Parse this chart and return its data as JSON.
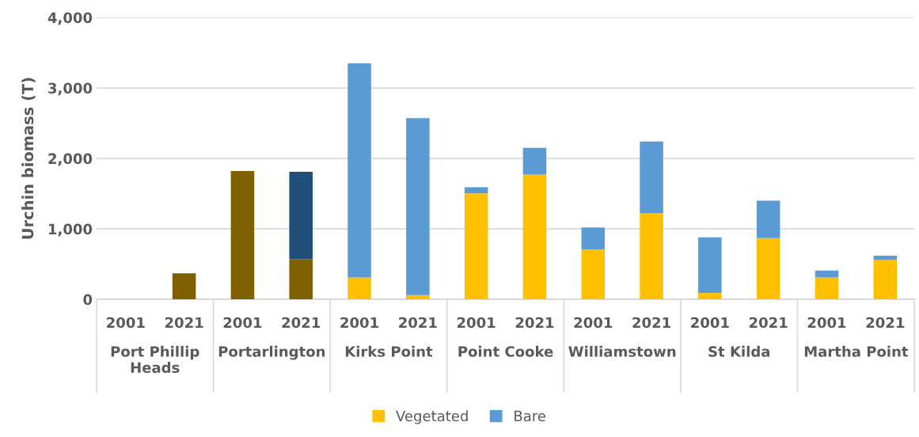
{
  "chart_data": {
    "type": "bar",
    "stacked": true,
    "ylabel": "Urchin biomass (T)",
    "categories": [
      "2001",
      "2021",
      "2001",
      "2021",
      "2001",
      "2021",
      "2001",
      "2021",
      "2001",
      "2021",
      "2001",
      "2021",
      "2001",
      "2021"
    ],
    "annotations": [
      "Port Phillip Heads",
      "Portarlington",
      "Kirks Point",
      "Point Cooke",
      "Williamstown",
      "St Kilda",
      "Martha Point"
    ],
    "series": [
      {
        "name": "Vegetated",
        "color": "#ffc000",
        "colors": [
          "#7f6000",
          "#7f6000",
          "#7f6000",
          "#7f6000",
          "#ffc000",
          "#ffc000",
          "#ffc000",
          "#ffc000",
          "#ffc000",
          "#ffc000",
          "#ffc000",
          "#ffc000",
          "#ffc000",
          "#ffc000"
        ],
        "values": [
          0,
          370,
          1820,
          570,
          310,
          60,
          1505,
          1770,
          710,
          1220,
          90,
          870,
          310,
          560
        ]
      },
      {
        "name": "Bare",
        "color": "#5b9bd5",
        "colors": [
          "#5b9bd5",
          "#5b9bd5",
          "#5b9bd5",
          "#1f4e79",
          "#5b9bd5",
          "#5b9bd5",
          "#5b9bd5",
          "#5b9bd5",
          "#5b9bd5",
          "#5b9bd5",
          "#5b9bd5",
          "#5b9bd5",
          "#5b9bd5",
          "#5b9bd5"
        ],
        "values": [
          0,
          0,
          0,
          1240,
          3040,
          2510,
          85,
          380,
          310,
          1020,
          790,
          530,
          100,
          60
        ]
      }
    ],
    "ylim": [
      0,
      4000
    ],
    "yticks": [
      {
        "value": 0,
        "label": "0"
      },
      {
        "value": 1000,
        "label": "1,000"
      },
      {
        "value": 2000,
        "label": "2,000"
      },
      {
        "value": 3000,
        "label": "3,000"
      },
      {
        "value": 4000,
        "label": "4,000"
      }
    ],
    "grid": "y",
    "legend": "bottom"
  }
}
